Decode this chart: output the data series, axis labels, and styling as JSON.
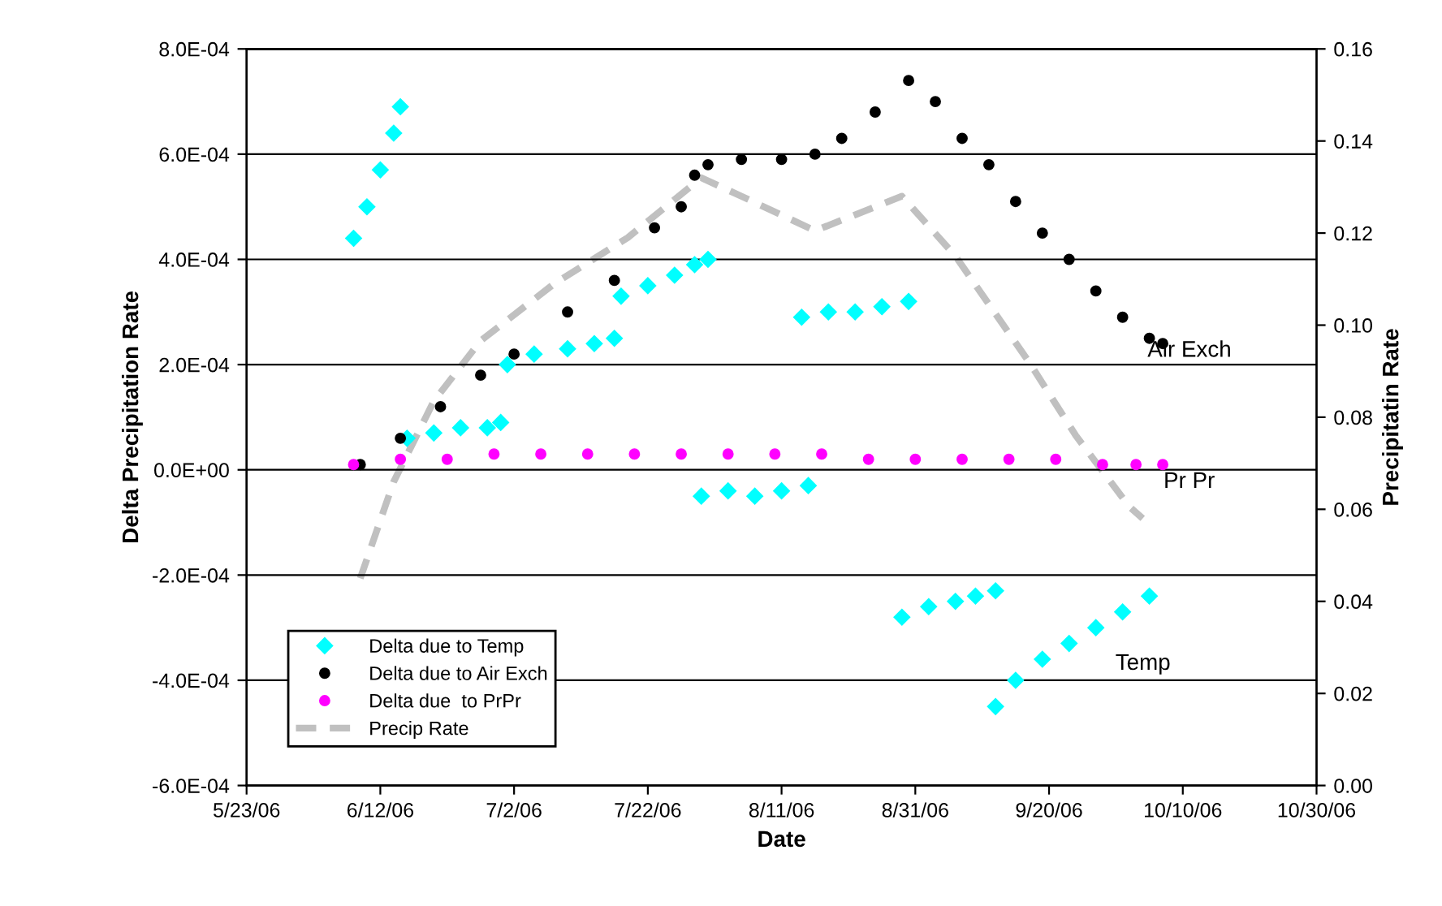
{
  "chart_data": {
    "type": "scatter",
    "xlabel": "Date",
    "ylabel": "Delta Precipitation Rate",
    "y2label": "Precipitatin Rate",
    "xlim": [
      "2006-05-23",
      "2006-10-30"
    ],
    "xticks": [
      {
        "value": "2006-05-23",
        "label": "5/23/06"
      },
      {
        "value": "2006-06-12",
        "label": "6/12/06"
      },
      {
        "value": "2006-07-02",
        "label": "7/2/06"
      },
      {
        "value": "2006-07-22",
        "label": "7/22/06"
      },
      {
        "value": "2006-08-11",
        "label": "8/11/06"
      },
      {
        "value": "2006-08-31",
        "label": "8/31/06"
      },
      {
        "value": "2006-09-20",
        "label": "9/20/06"
      },
      {
        "value": "2006-10-10",
        "label": "10/10/06"
      },
      {
        "value": "2006-10-30",
        "label": "10/30/06"
      }
    ],
    "ylim": [
      -0.0006,
      0.0008
    ],
    "yticks": [
      {
        "value": -0.0006,
        "label": "-6.0E-04"
      },
      {
        "value": -0.0004,
        "label": "-4.0E-04"
      },
      {
        "value": -0.0002,
        "label": "-2.0E-04"
      },
      {
        "value": 0,
        "label": "0.0E+00"
      },
      {
        "value": 0.0002,
        "label": "2.0E-04"
      },
      {
        "value": 0.0004,
        "label": "4.0E-04"
      },
      {
        "value": 0.0006,
        "label": "6.0E-04"
      },
      {
        "value": 0.0008,
        "label": "8.0E-04"
      }
    ],
    "y2lim": [
      0,
      0.16
    ],
    "y2ticks": [
      {
        "value": 0,
        "label": "0.00"
      },
      {
        "value": 0.02,
        "label": "0.02"
      },
      {
        "value": 0.04,
        "label": "0.04"
      },
      {
        "value": 0.06,
        "label": "0.06"
      },
      {
        "value": 0.08,
        "label": "0.08"
      },
      {
        "value": 0.1,
        "label": "0.10"
      },
      {
        "value": 0.12,
        "label": "0.12"
      },
      {
        "value": 0.14,
        "label": "0.14"
      },
      {
        "value": 0.16,
        "label": "0.16"
      }
    ],
    "grid": "y",
    "legend": "bottom left",
    "annotations": [
      "Air Exch",
      "Pr Pr",
      "Temp"
    ],
    "series": [
      {
        "name": "Delta due to Temp",
        "marker": "diamond",
        "color": "#00ffff",
        "x": [
          "2006-06-08",
          "2006-06-10",
          "2006-06-12",
          "2006-06-14",
          "2006-06-15",
          "2006-06-16",
          "2006-06-20",
          "2006-06-24",
          "2006-06-28",
          "2006-06-30",
          "2006-07-01",
          "2006-07-05",
          "2006-07-10",
          "2006-07-14",
          "2006-07-17",
          "2006-07-18",
          "2006-07-22",
          "2006-07-26",
          "2006-07-29",
          "2006-07-31",
          "2006-07-30",
          "2006-08-03",
          "2006-08-07",
          "2006-08-11",
          "2006-08-15",
          "2006-08-14",
          "2006-08-18",
          "2006-08-22",
          "2006-08-26",
          "2006-08-30",
          "2006-08-29",
          "2006-09-02",
          "2006-09-06",
          "2006-09-09",
          "2006-09-12",
          "2006-09-12",
          "2006-09-15",
          "2006-09-19",
          "2006-09-23",
          "2006-09-27",
          "2006-10-01",
          "2006-10-05"
        ],
        "values": [
          0.00044,
          0.0005,
          0.00057,
          0.00064,
          0.00069,
          6e-05,
          7e-05,
          8e-05,
          8e-05,
          9e-05,
          0.0002,
          0.00022,
          0.00023,
          0.00024,
          0.00025,
          0.00033,
          0.00035,
          0.00037,
          0.00039,
          0.0004,
          -5e-05,
          -4e-05,
          -5e-05,
          -4e-05,
          -3e-05,
          0.00029,
          0.0003,
          0.0003,
          0.00031,
          0.00032,
          -0.00028,
          -0.00026,
          -0.00025,
          -0.00024,
          -0.00023,
          -0.00045,
          -0.0004,
          -0.00036,
          -0.00033,
          -0.0003,
          -0.00027,
          -0.00024
        ]
      },
      {
        "name": "Delta due to Air Exch",
        "marker": "circle",
        "color": "#000000",
        "x": [
          "2006-06-09",
          "2006-06-15",
          "2006-06-21",
          "2006-06-27",
          "2006-07-02",
          "2006-07-10",
          "2006-07-17",
          "2006-07-23",
          "2006-07-27",
          "2006-07-29",
          "2006-07-31",
          "2006-08-05",
          "2006-08-11",
          "2006-08-16",
          "2006-08-20",
          "2006-08-25",
          "2006-08-30",
          "2006-09-03",
          "2006-09-07",
          "2006-09-11",
          "2006-09-15",
          "2006-09-19",
          "2006-09-23",
          "2006-09-27",
          "2006-10-01",
          "2006-10-05",
          "2006-10-07"
        ],
        "values": [
          1e-05,
          6e-05,
          0.00012,
          0.00018,
          0.00022,
          0.0003,
          0.00036,
          0.00046,
          0.0005,
          0.00056,
          0.00058,
          0.00059,
          0.00059,
          0.0006,
          0.00063,
          0.00068,
          0.00074,
          0.0007,
          0.00063,
          0.00058,
          0.00051,
          0.00045,
          0.0004,
          0.00034,
          0.00029,
          0.00025,
          0.00024
        ]
      },
      {
        "name": "Delta due  to PrPr",
        "marker": "circle",
        "color": "#ff00ff",
        "x": [
          "2006-06-08",
          "2006-06-15",
          "2006-06-22",
          "2006-06-29",
          "2006-07-06",
          "2006-07-13",
          "2006-07-20",
          "2006-07-27",
          "2006-08-03",
          "2006-08-10",
          "2006-08-17",
          "2006-08-24",
          "2006-08-31",
          "2006-09-07",
          "2006-09-14",
          "2006-09-21",
          "2006-09-28",
          "2006-10-03",
          "2006-10-07"
        ],
        "values": [
          1e-05,
          2e-05,
          2e-05,
          3e-05,
          3e-05,
          3e-05,
          3e-05,
          3e-05,
          3e-05,
          3e-05,
          3e-05,
          2e-05,
          2e-05,
          2e-05,
          2e-05,
          2e-05,
          1e-05,
          1e-05,
          1e-05
        ]
      },
      {
        "name": "Precip Rate",
        "type": "line",
        "axis": "y2",
        "line_style": "dashed",
        "marker": "none",
        "color": "#c0c0c0",
        "x": [
          "2006-06-09",
          "2006-06-14",
          "2006-06-20",
          "2006-06-27",
          "2006-07-08",
          "2006-07-19",
          "2006-07-30",
          "2006-08-05",
          "2006-08-16",
          "2006-08-29",
          "2006-09-06",
          "2006-09-17",
          "2006-09-24",
          "2006-10-02",
          "2006-10-04"
        ],
        "values": [
          0.045,
          0.066,
          0.0835,
          0.0966,
          0.109,
          0.119,
          0.132,
          0.128,
          0.1205,
          0.128,
          0.115,
          0.092,
          0.076,
          0.0606,
          0.058
        ]
      }
    ]
  }
}
